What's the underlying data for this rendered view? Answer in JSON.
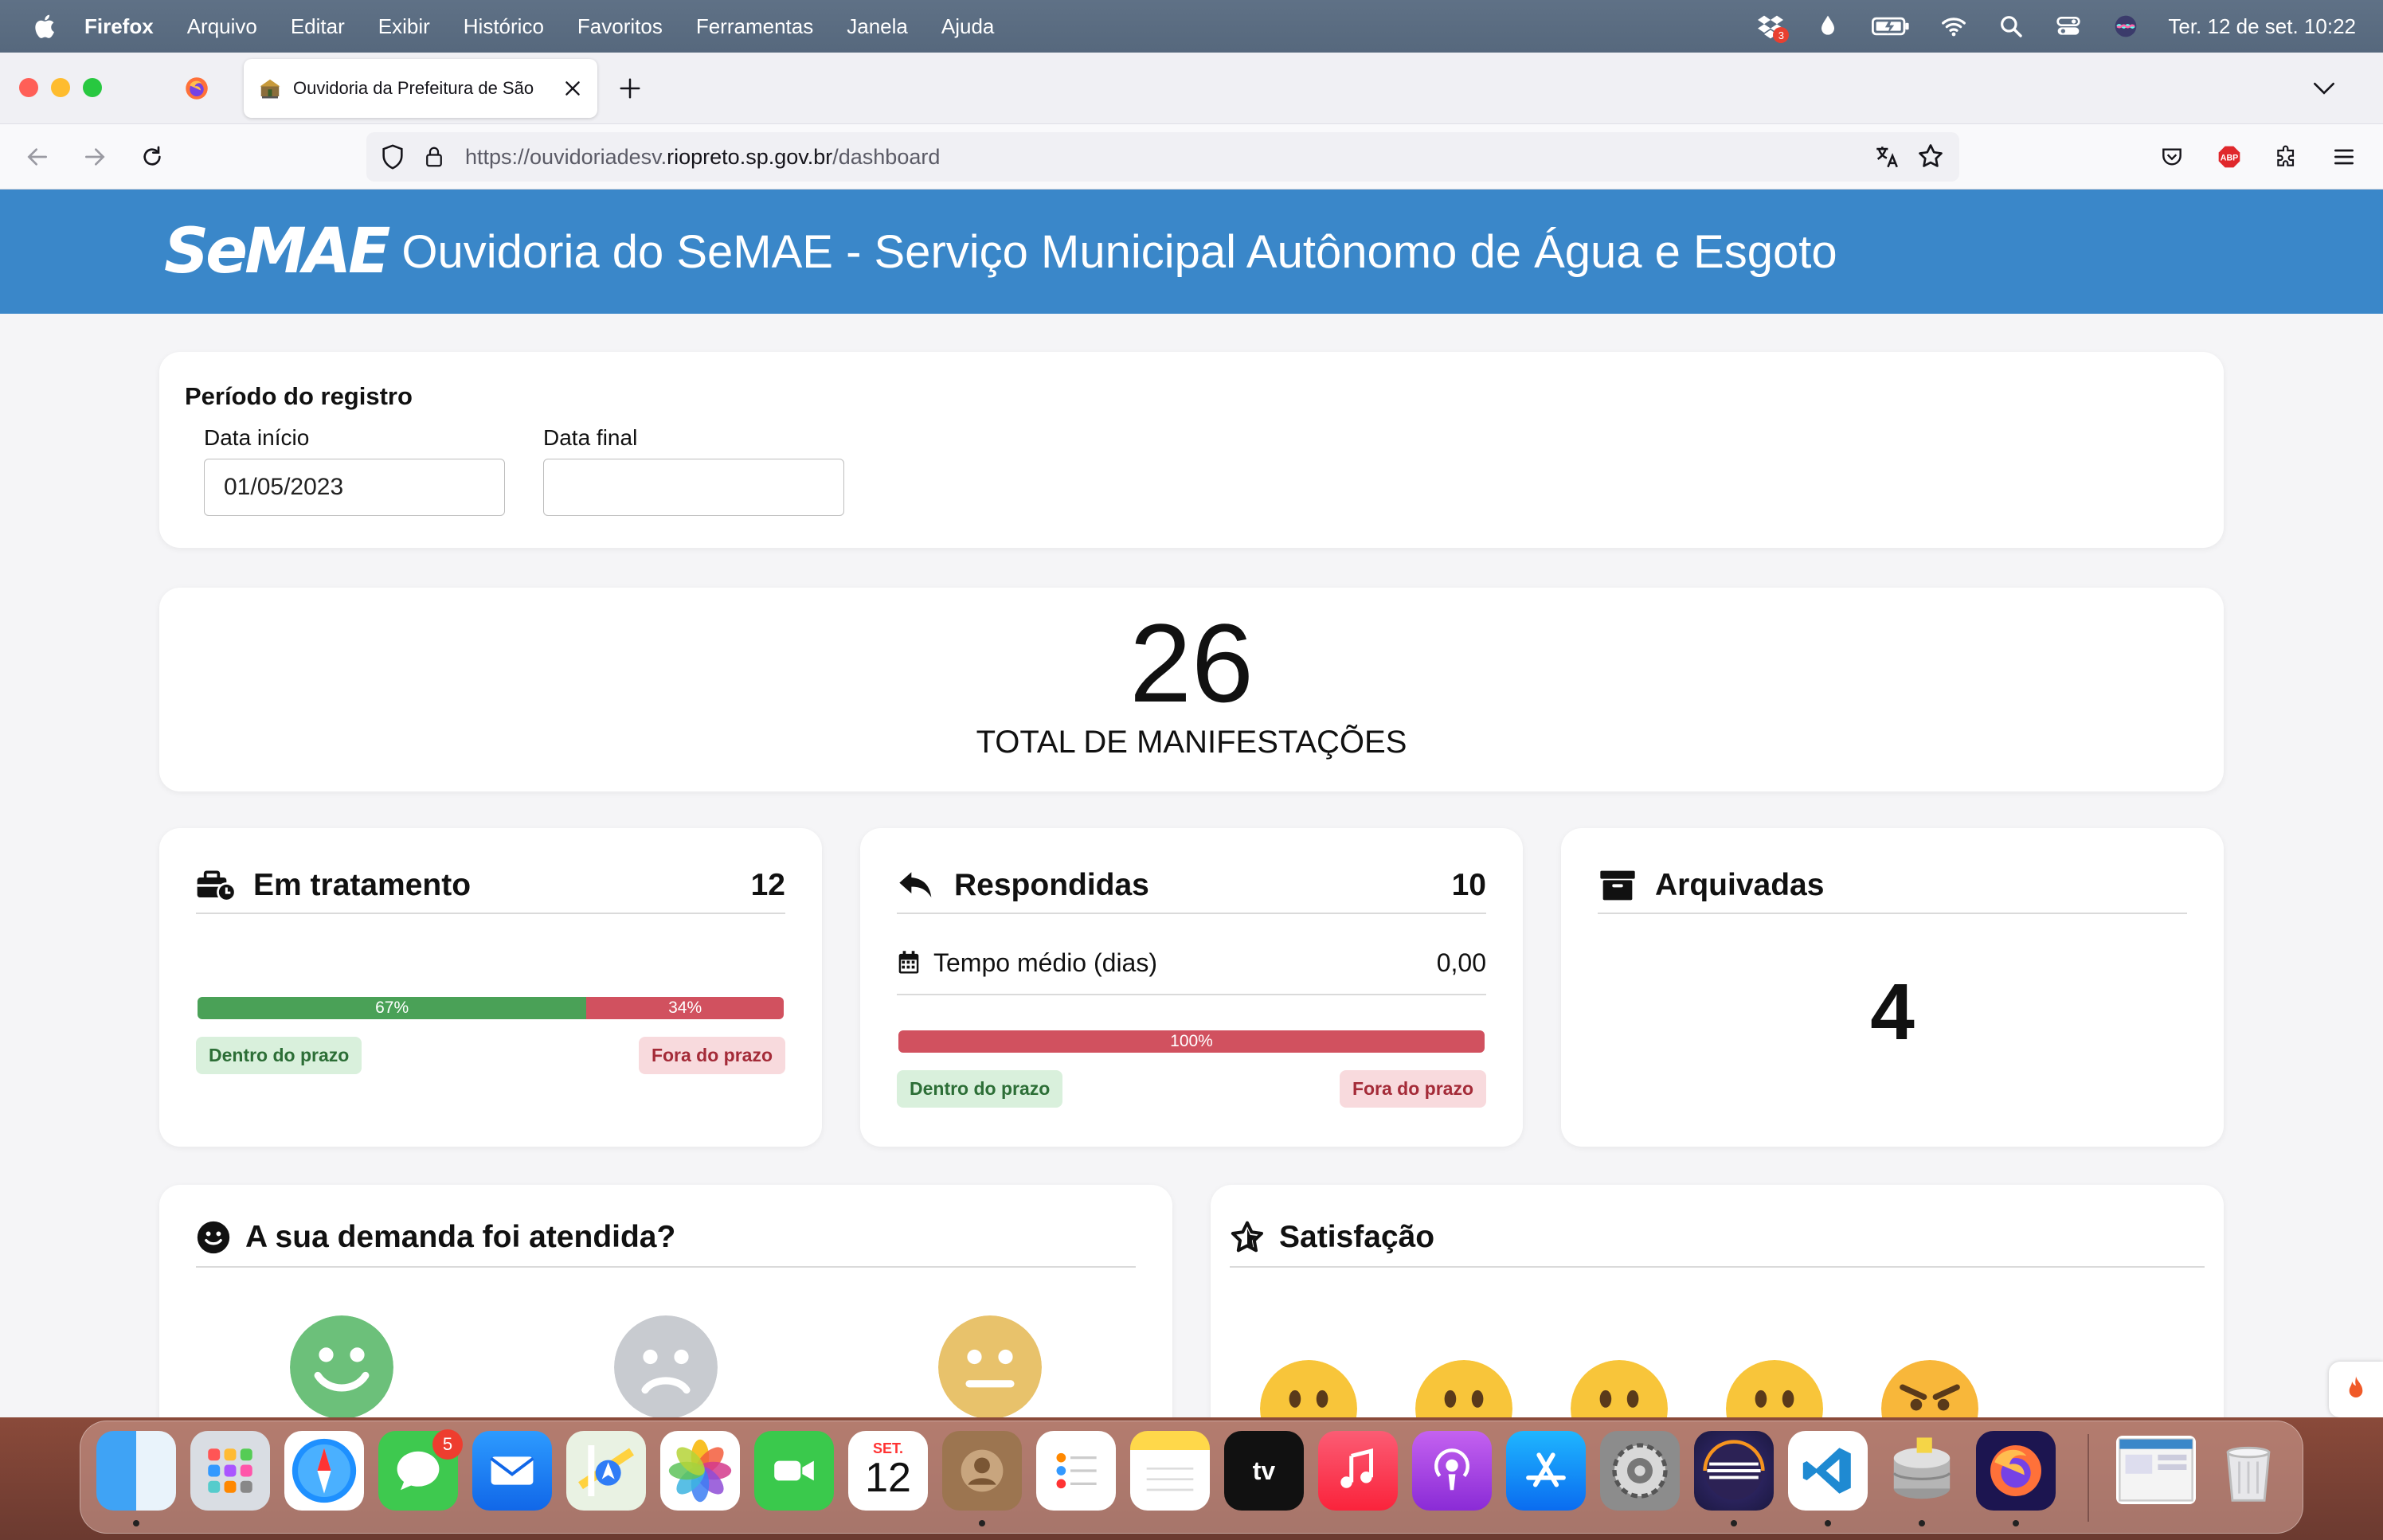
{
  "menubar": {
    "app_name": "Firefox",
    "menus": [
      "Arquivo",
      "Editar",
      "Exibir",
      "Histórico",
      "Favoritos",
      "Ferramentas",
      "Janela",
      "Ajuda"
    ],
    "dropbox_badge": "3",
    "clock": "Ter. 12 de set.  10:22"
  },
  "browser": {
    "tab_title": "Ouvidoria da Prefeitura de São ",
    "url_prefix": "https://ouvidoriadesv.",
    "url_host": "riopreto.sp.gov.br",
    "url_path": "/dashboard"
  },
  "header": {
    "logo_text": "SeMAE",
    "title": "Ouvidoria do SeMAE - Serviço Municipal Autônomo de Água e Esgoto"
  },
  "period": {
    "title": "Período do registro",
    "start_label": "Data início",
    "start_value": "01/05/2023",
    "end_label": "Data final",
    "end_value": ""
  },
  "total": {
    "number": "26",
    "label": "TOTAL DE MANIFESTAÇÕES"
  },
  "em_tratamento": {
    "title": "Em tratamento",
    "count": "12",
    "within_pct": 67,
    "outside_pct": 34,
    "within_label_text": "67%",
    "outside_label_text": "34%",
    "within_label": "Dentro do prazo",
    "outside_label": "Fora do prazo"
  },
  "respondidas": {
    "title": "Respondidas",
    "count": "10",
    "tempo_label": "Tempo médio (dias)",
    "tempo_value": "0,00",
    "outside_pct": 100,
    "bar_text": "100%",
    "within_label": "Dentro do prazo",
    "outside_label": "Fora do prazo"
  },
  "arquivadas": {
    "title": "Arquivadas",
    "count": "4"
  },
  "demanda": {
    "title": "A sua demanda foi atendida?"
  },
  "satisfacao": {
    "title": "Satisfação"
  },
  "dock": {
    "calendar_month": "SET.",
    "calendar_day": "12",
    "messages_badge": "5",
    "tv_label": "tv"
  }
}
